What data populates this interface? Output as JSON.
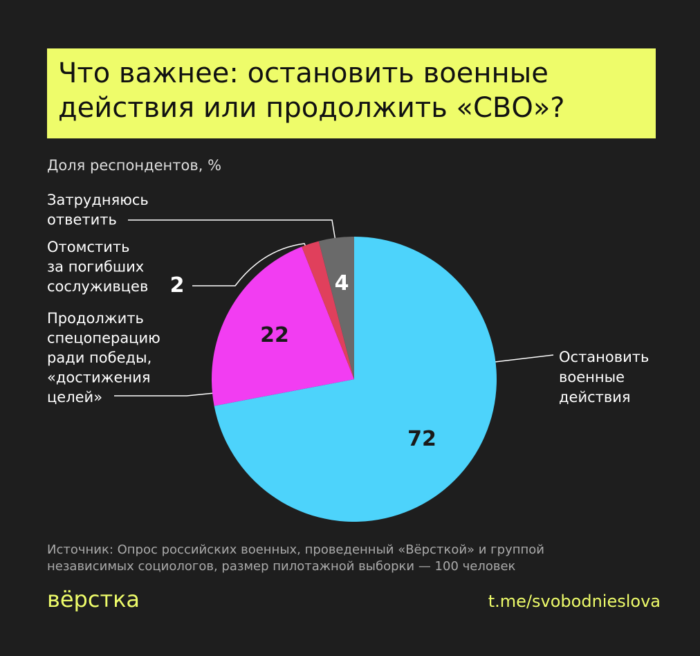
{
  "chart_data": {
    "type": "pie",
    "title": "Что важнее: остановить военные\nдействия или продолжить «СВО»?",
    "subtitle": "Доля респондентов, %",
    "categories": [
      "Остановить\nвоенные\nдействия",
      "Продолжить\nспецоперацию\nради победы,\n«достижения\nцелей»",
      "Отомстить\nза погибших\nсослуживцев",
      "Затрудняюсь\nответить"
    ],
    "values": [
      72,
      22,
      2,
      4
    ],
    "colors": [
      "#4dd3fb",
      "#f23df2",
      "#e0405c",
      "#6a6a6a"
    ],
    "source": "Источник: Опрос российских военных, проведенный «Вёрсткой» и группой\nнезависимых социологов, размер пилотажной выборки — 100 человек",
    "logo": "вёрстка",
    "link": "t.me/svobodnieslova"
  }
}
